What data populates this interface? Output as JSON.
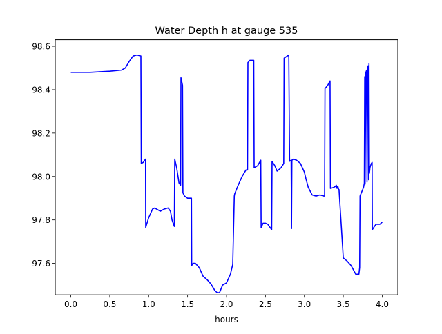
{
  "chart_data": {
    "type": "line",
    "title": "Water Depth h at gauge 535",
    "xlabel": "hours",
    "ylabel": "",
    "xlim": [
      -0.2,
      4.2
    ],
    "ylim": [
      97.455,
      98.63
    ],
    "xticks": [
      0.0,
      0.5,
      1.0,
      1.5,
      2.0,
      2.5,
      3.0,
      3.5,
      4.0
    ],
    "xtick_labels": [
      "0.0",
      "0.5",
      "1.0",
      "1.5",
      "2.0",
      "2.5",
      "3.0",
      "3.5",
      "4.0"
    ],
    "yticks": [
      97.6,
      97.8,
      98.0,
      98.2,
      98.4,
      98.6
    ],
    "ytick_labels": [
      "97.6",
      "97.8",
      "98.0",
      "98.2",
      "98.4",
      "98.6"
    ],
    "grid": false,
    "line_color": "#0000ff",
    "series": [
      {
        "x": [
          0.0,
          0.25,
          0.5,
          0.65,
          0.7,
          0.75,
          0.8,
          0.85,
          0.9,
          0.905,
          0.93,
          0.96,
          0.962,
          0.97,
          1.0,
          1.05,
          1.08,
          1.1,
          1.15,
          1.2,
          1.25,
          1.28,
          1.3,
          1.33,
          1.335,
          1.36,
          1.39,
          1.41,
          1.415,
          1.435,
          1.44,
          1.46,
          1.5,
          1.55,
          1.553,
          1.57,
          1.6,
          1.65,
          1.7,
          1.75,
          1.8,
          1.85,
          1.88,
          1.91,
          1.95,
          2.0,
          2.05,
          2.08,
          2.1,
          2.105,
          2.15,
          2.2,
          2.25,
          2.27,
          2.275,
          2.3,
          2.35,
          2.355,
          2.4,
          2.44,
          2.445,
          2.47,
          2.5,
          2.53,
          2.58,
          2.585,
          2.62,
          2.65,
          2.7,
          2.735,
          2.74,
          2.8,
          2.81,
          2.83,
          2.835,
          2.84,
          2.86,
          2.9,
          2.95,
          3.0,
          3.02,
          3.05,
          3.1,
          3.15,
          3.2,
          3.25,
          3.26,
          3.265,
          3.3,
          3.33,
          3.335,
          3.38,
          3.4,
          3.41,
          3.42,
          3.43,
          3.44,
          3.445,
          3.5,
          3.55,
          3.6,
          3.63,
          3.66,
          3.7,
          3.71,
          3.715,
          3.76,
          3.77,
          3.775,
          3.78,
          3.79,
          3.8,
          3.805,
          3.81,
          3.82,
          3.825,
          3.83,
          3.835,
          3.84,
          3.842,
          3.86,
          3.87,
          3.873,
          3.9,
          3.92,
          3.95,
          3.97,
          4.0
        ],
        "y": [
          98.48,
          98.48,
          98.485,
          98.49,
          98.5,
          98.53,
          98.555,
          98.56,
          98.555,
          98.06,
          98.065,
          98.08,
          97.765,
          97.775,
          97.81,
          97.85,
          97.855,
          97.85,
          97.84,
          97.85,
          97.855,
          97.84,
          97.8,
          97.77,
          98.08,
          98.04,
          97.97,
          97.96,
          98.455,
          98.42,
          97.925,
          97.91,
          97.9,
          97.9,
          97.59,
          97.6,
          97.6,
          97.58,
          97.54,
          97.525,
          97.505,
          97.475,
          97.465,
          97.465,
          97.5,
          97.51,
          97.55,
          97.595,
          97.91,
          97.92,
          97.96,
          98.0,
          98.03,
          98.03,
          98.525,
          98.535,
          98.535,
          98.04,
          98.05,
          98.075,
          97.765,
          97.785,
          97.785,
          97.78,
          97.755,
          98.07,
          98.05,
          98.025,
          98.04,
          98.06,
          98.545,
          98.56,
          98.07,
          98.075,
          97.76,
          98.075,
          98.08,
          98.075,
          98.06,
          98.02,
          97.99,
          97.95,
          97.915,
          97.91,
          97.915,
          97.91,
          97.91,
          98.405,
          98.42,
          98.44,
          97.945,
          97.95,
          97.955,
          97.96,
          97.945,
          97.955,
          97.94,
          97.94,
          97.625,
          97.61,
          97.59,
          97.57,
          97.55,
          97.55,
          97.58,
          97.91,
          97.95,
          97.97,
          98.46,
          97.965,
          98.48,
          98.49,
          97.975,
          98.5,
          98.51,
          97.985,
          98.52,
          98.015,
          98.03,
          98.04,
          98.06,
          98.065,
          97.755,
          97.77,
          97.78,
          97.78,
          97.78,
          97.79
        ]
      }
    ]
  }
}
